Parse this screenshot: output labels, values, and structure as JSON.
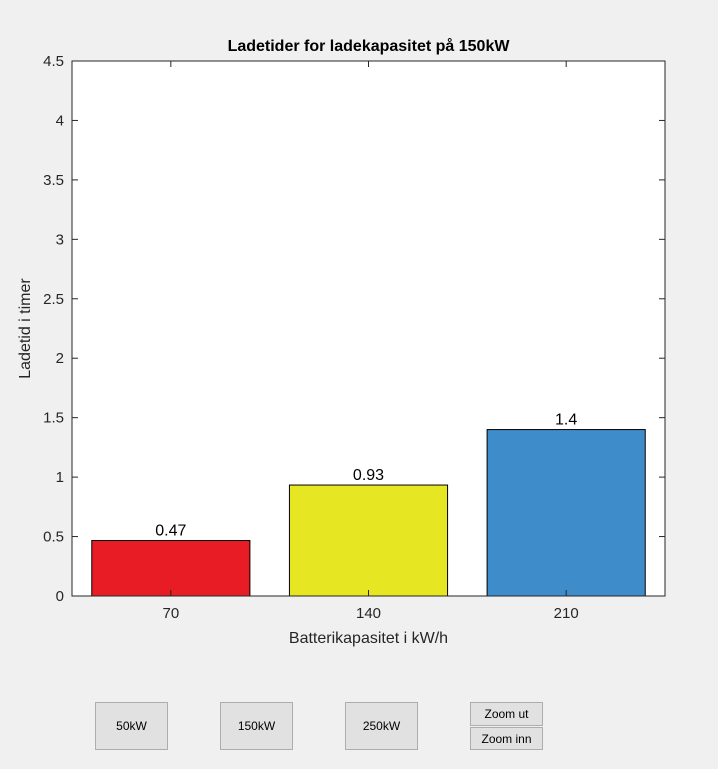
{
  "chart_data": {
    "type": "bar",
    "title": "Ladetider for ladekapasitet på 150kW",
    "xlabel": "Batterikapasitet i kW/h",
    "ylabel": "Ladetid i timer",
    "categories": [
      "70",
      "140",
      "210"
    ],
    "values": [
      0.4667,
      0.9333,
      1.4
    ],
    "data_labels": [
      "0.47",
      "0.93",
      "1.4"
    ],
    "bar_colors": [
      "#e81c24",
      "#e6e623",
      "#3e8cc9"
    ],
    "ylim": [
      0,
      4.5
    ],
    "yticks": [
      0,
      0.5,
      1,
      1.5,
      2,
      2.5,
      3,
      3.5,
      4,
      4.5
    ],
    "ytick_labels": [
      "0",
      "0.5",
      "1",
      "1.5",
      "2",
      "2.5",
      "3",
      "3.5",
      "4",
      "4.5"
    ],
    "grid": false,
    "legend": "none"
  },
  "controls": {
    "btn_50": "50kW",
    "btn_150": "150kW",
    "btn_250": "250kW",
    "zoom_out": "Zoom ut",
    "zoom_in": "Zoom inn"
  }
}
